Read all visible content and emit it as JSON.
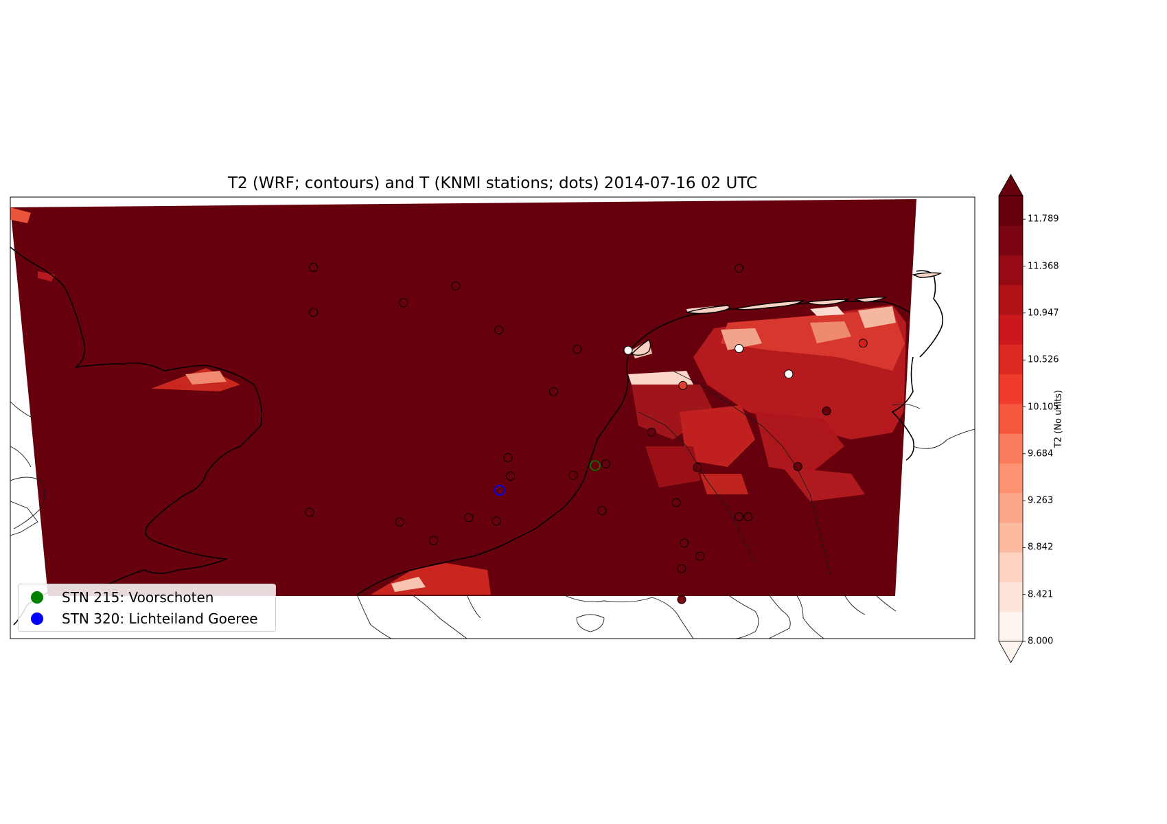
{
  "title": "T2 (WRF; contours) and T (KNMI stations; dots) 2014-07-16 02 UTC",
  "legend": {
    "entries": [
      {
        "label": "STN 215: Voorschoten",
        "color": "#008000"
      },
      {
        "label": "STN 320: Lichteiland Goeree",
        "color": "#0000ff"
      }
    ]
  },
  "colorbar": {
    "label": "T2 (No units)",
    "ticks": [
      "11.789",
      "11.368",
      "10.947",
      "10.526",
      "10.105",
      "9.684",
      "9.263",
      "8.842",
      "8.421",
      "8.000"
    ],
    "min": 8.0,
    "max": 12.0,
    "extend": "both",
    "colors": [
      "#fff5f0",
      "#fee5d9",
      "#fdd4c2",
      "#fcbba1",
      "#fca689",
      "#fc9272",
      "#fb7c5c",
      "#f6583e",
      "#ef3c2c",
      "#de2a25",
      "#cb181d",
      "#b11218",
      "#960b13",
      "#7a0510",
      "#67000d"
    ]
  },
  "map": {
    "field_color": "#67000d",
    "highlight_stations": [
      {
        "id": "215",
        "name": "Voorschoten",
        "color": "#008000"
      },
      {
        "id": "320",
        "name": "Lichteiland Goeree",
        "color": "#0000ff"
      }
    ],
    "station_markers": [
      {
        "lon": 2.94,
        "lat": 54.33,
        "color": "#67000d"
      },
      {
        "lon": 4.03,
        "lat": 54.12,
        "color": "#67000d"
      },
      {
        "lon": 2.94,
        "lat": 53.82,
        "color": "#67000d"
      },
      {
        "lon": 4.36,
        "lat": 53.62,
        "color": "#67000d"
      },
      {
        "lon": 3.63,
        "lat": 53.93,
        "color": "#67000d"
      },
      {
        "lon": 4.96,
        "lat": 53.4,
        "color": "#67000d"
      },
      {
        "lon": 4.78,
        "lat": 52.92,
        "color": "#67000d"
      },
      {
        "lon": 5.35,
        "lat": 53.39,
        "color": "#ffffff"
      },
      {
        "lon": 6.2,
        "lat": 53.41,
        "color": "#ffffff"
      },
      {
        "lon": 6.58,
        "lat": 53.12,
        "color": "#ffffff"
      },
      {
        "lon": 7.15,
        "lat": 53.47,
        "color": "#d42020"
      },
      {
        "lon": 6.2,
        "lat": 54.32,
        "color": "#67000d"
      },
      {
        "lon": 5.77,
        "lat": 52.99,
        "color": "#e04030"
      },
      {
        "lon": 6.87,
        "lat": 52.7,
        "color": "#67000d"
      },
      {
        "lon": 5.53,
        "lat": 52.46,
        "color": "#67000d"
      },
      {
        "lon": 4.43,
        "lat": 52.17,
        "color": "#67000d"
      },
      {
        "lon": 5.18,
        "lat": 52.1,
        "color": "#67000d"
      },
      {
        "lon": 4.93,
        "lat": 51.97,
        "color": "#67000d"
      },
      {
        "lon": 4.45,
        "lat": 51.96,
        "color": "#67000d"
      },
      {
        "lon": 5.88,
        "lat": 52.06,
        "color": "#67000d"
      },
      {
        "lon": 6.65,
        "lat": 52.07,
        "color": "#67000d"
      },
      {
        "lon": 6.27,
        "lat": 51.5,
        "color": "#67000d"
      },
      {
        "lon": 5.78,
        "lat": 51.2,
        "color": "#67000d"
      },
      {
        "lon": 5.76,
        "lat": 50.91,
        "color": "#67000d"
      },
      {
        "lon": 4.34,
        "lat": 51.45,
        "color": "#67000d"
      },
      {
        "lon": 3.6,
        "lat": 51.44,
        "color": "#67000d"
      },
      {
        "lon": 3.86,
        "lat": 51.23,
        "color": "#67000d"
      },
      {
        "lon": 4.13,
        "lat": 51.49,
        "color": "#67000d"
      },
      {
        "lon": 2.91,
        "lat": 51.55,
        "color": "#67000d"
      },
      {
        "lon": 5.15,
        "lat": 51.57,
        "color": "#67000d"
      },
      {
        "lon": 5.72,
        "lat": 51.66,
        "color": "#67000d"
      },
      {
        "lon": 6.2,
        "lat": 51.5,
        "color": "#67000d"
      },
      {
        "lon": 5.9,
        "lat": 51.05,
        "color": "#67000d"
      },
      {
        "lon": 5.76,
        "lat": 50.56,
        "color": "#7a0510"
      }
    ]
  }
}
